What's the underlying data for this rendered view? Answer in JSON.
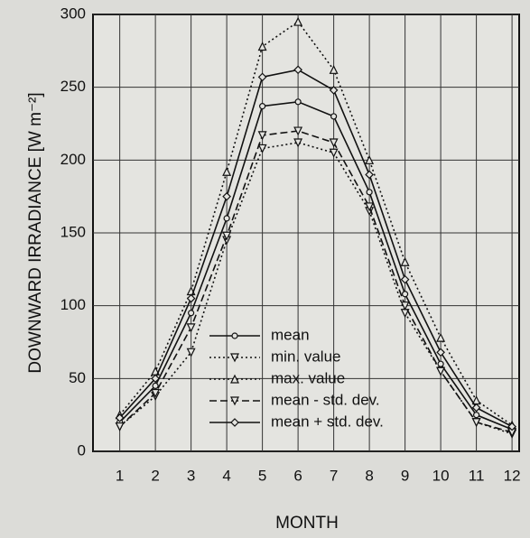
{
  "chart_data": {
    "type": "line",
    "x_label": "MONTH",
    "y_label": "DOWNWARD IRRADIANCE [W m⁻²]",
    "x": [
      1,
      2,
      3,
      4,
      5,
      6,
      7,
      8,
      9,
      10,
      11,
      12
    ],
    "xlim": [
      0.25,
      12.2
    ],
    "xticks": [
      1,
      2,
      3,
      4,
      5,
      6,
      7,
      8,
      9,
      10,
      11,
      12
    ],
    "ylim": [
      0,
      300
    ],
    "yticks": [
      0,
      50,
      100,
      150,
      200,
      250,
      300
    ],
    "grid": true,
    "legend": "lower center",
    "series": [
      {
        "name": "mean",
        "color": "#111111",
        "dash": "solid",
        "marker": "circle",
        "values": [
          20,
          45,
          95,
          160,
          237,
          240,
          230,
          178,
          108,
          60,
          25,
          15
        ]
      },
      {
        "name": "min. value",
        "color": "#111111",
        "dash": "dotted",
        "marker": "triangle-down",
        "values": [
          17,
          38,
          68,
          145,
          208,
          212,
          205,
          165,
          95,
          55,
          20,
          12
        ]
      },
      {
        "name": "max. value",
        "color": "#111111",
        "dash": "dotted",
        "marker": "triangle-up",
        "values": [
          25,
          55,
          110,
          192,
          278,
          295,
          262,
          200,
          130,
          78,
          35,
          18
        ]
      },
      {
        "name": "mean - std. dev.",
        "color": "#111111",
        "dash": "dashed",
        "marker": "triangle-down",
        "values": [
          17,
          40,
          85,
          148,
          217,
          220,
          212,
          168,
          100,
          55,
          20,
          13
        ]
      },
      {
        "name": "mean + std. dev.",
        "color": "#111111",
        "dash": "solid",
        "marker": "diamond",
        "values": [
          23,
          50,
          105,
          175,
          257,
          262,
          248,
          190,
          118,
          68,
          30,
          17
        ]
      }
    ]
  }
}
